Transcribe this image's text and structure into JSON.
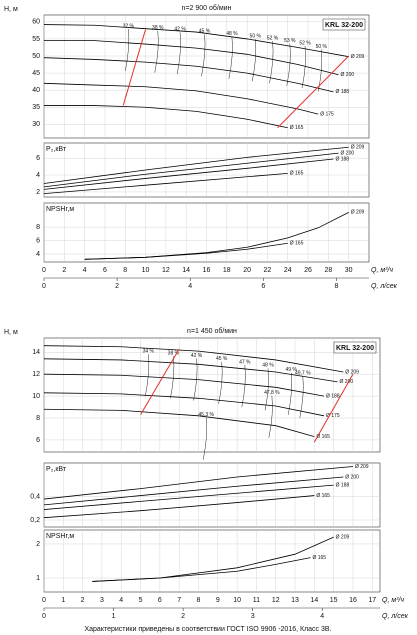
{
  "chart_data": [
    {
      "type": "line",
      "title": "n=2 900 об/мин",
      "model": "KRL 32-200",
      "ylabel": "H, м",
      "xlim": [
        0,
        32
      ],
      "ylim": [
        26,
        62
      ],
      "xticks": [
        0,
        2,
        4,
        6,
        8,
        10,
        12,
        14,
        16,
        18,
        20,
        22,
        24,
        26,
        28,
        30
      ],
      "yticks": [
        30,
        35,
        40,
        45,
        50,
        55,
        60
      ],
      "series": [
        {
          "name": "Ø 209",
          "color": "#000000",
          "x": [
            0,
            5,
            10,
            15,
            20,
            25,
            30
          ],
          "values": [
            59.2,
            59,
            58,
            57,
            55,
            52.5,
            49.8
          ]
        },
        {
          "name": "Ø 200",
          "color": "#000000",
          "x": [
            0,
            5,
            10,
            15,
            20,
            25,
            29
          ],
          "values": [
            54.5,
            54.5,
            53.5,
            52.3,
            50.5,
            47.5,
            44.5
          ]
        },
        {
          "name": "Ø 188",
          "color": "#000000",
          "x": [
            0,
            5,
            10,
            15,
            20,
            25,
            28.5
          ],
          "values": [
            49.5,
            49,
            48.2,
            47,
            45,
            42,
            39.5
          ]
        },
        {
          "name": "Ø 175",
          "color": "#000000",
          "x": [
            0,
            5,
            10,
            15,
            20,
            25,
            27
          ],
          "values": [
            42,
            41.5,
            41,
            39.8,
            37.5,
            34.5,
            33
          ]
        },
        {
          "name": "Ø 165",
          "color": "#000000",
          "x": [
            0,
            5,
            10,
            15,
            20,
            24
          ],
          "values": [
            35.5,
            35.5,
            35,
            33.8,
            31.5,
            29
          ]
        }
      ],
      "limit_lines": [
        {
          "color": "#e0302a",
          "x": [
            7.8,
            10
          ],
          "values": [
            35.5,
            57.8
          ]
        },
        {
          "color": "#e0302a",
          "x": [
            23,
            30
          ],
          "values": [
            29,
            50
          ]
        }
      ],
      "efficiency_labels": [
        "32 %",
        "38 %",
        "42 %",
        "45 %",
        "48 %",
        "50 %",
        "52 %",
        "53 %",
        "52 %",
        "50 %"
      ]
    },
    {
      "type": "line",
      "ylabel": "P₂,кВт",
      "xlim": [
        0,
        32
      ],
      "ylim": [
        1.4,
        7.8
      ],
      "xticks": [
        0,
        2,
        4,
        6,
        8,
        10,
        12,
        14,
        16,
        18,
        20,
        22,
        24,
        26,
        28,
        30
      ],
      "yticks": [
        2,
        4,
        6
      ],
      "series": [
        {
          "name": "Ø 209",
          "color": "#000000",
          "x": [
            0,
            10,
            20,
            30
          ],
          "values": [
            3.0,
            4.6,
            6.1,
            7.3
          ]
        },
        {
          "name": "Ø 200",
          "color": "#000000",
          "x": [
            0,
            10,
            20,
            29
          ],
          "values": [
            2.6,
            4.1,
            5.4,
            6.6
          ]
        },
        {
          "name": "Ø 188",
          "color": "#000000",
          "x": [
            0,
            10,
            20,
            28.5
          ],
          "values": [
            2.3,
            3.6,
            4.8,
            5.9
          ]
        },
        {
          "name": "Ø 165",
          "color": "#000000",
          "x": [
            0,
            10,
            20,
            24
          ],
          "values": [
            1.8,
            2.8,
            3.8,
            4.2
          ]
        }
      ]
    },
    {
      "type": "line",
      "ylabel": "NPSHr,м",
      "xlabel": "Q, м³/ч",
      "x2label": "Q, л/сек",
      "xlim": [
        0,
        32
      ],
      "ylim": [
        2.8,
        11.6
      ],
      "xticks": [
        0,
        2,
        4,
        6,
        8,
        10,
        12,
        14,
        16,
        18,
        20,
        22,
        24,
        26,
        28,
        30
      ],
      "yticks": [
        4,
        6,
        8
      ],
      "x2lim": [
        0,
        8.89
      ],
      "x2ticks": [
        0,
        2,
        4,
        6,
        8
      ],
      "series": [
        {
          "name": "Ø 209",
          "color": "#000000",
          "x": [
            4,
            10,
            16,
            20,
            24,
            27,
            30
          ],
          "values": [
            3.2,
            3.5,
            4.2,
            5,
            6.4,
            7.9,
            10.2
          ]
        },
        {
          "name": "Ø 165",
          "color": "#000000",
          "x": [
            4,
            10,
            16,
            20,
            24
          ],
          "values": [
            3.2,
            3.5,
            4.1,
            4.7,
            5.6
          ]
        }
      ]
    },
    {
      "type": "line",
      "title": "n=1 450 об/мин",
      "model": "KRL 32-200",
      "ylabel": "H, м",
      "xlim": [
        0,
        17.4
      ],
      "ylim": [
        4.9,
        15.3
      ],
      "xticks": [
        0,
        1,
        2,
        3,
        4,
        5,
        6,
        7,
        8,
        9,
        10,
        11,
        12,
        13,
        14,
        15,
        16,
        17
      ],
      "yticks": [
        6,
        8,
        10,
        12,
        14
      ],
      "series": [
        {
          "name": "Ø 209",
          "color": "#000000",
          "x": [
            0,
            4,
            8,
            12,
            15.5
          ],
          "values": [
            14.6,
            14.5,
            14.1,
            13.3,
            12.2
          ]
        },
        {
          "name": "Ø 200",
          "color": "#000000",
          "x": [
            0,
            4,
            8,
            12,
            15.2
          ],
          "values": [
            13.4,
            13.3,
            12.9,
            12.2,
            11.3
          ]
        },
        {
          "name": "Ø 188",
          "color": "#000000",
          "x": [
            0,
            4,
            8,
            12,
            14.5
          ],
          "values": [
            12,
            11.9,
            11.5,
            10.8,
            10
          ]
        },
        {
          "name": "Ø 175",
          "color": "#000000",
          "x": [
            0,
            4,
            8,
            12,
            14.5
          ],
          "values": [
            10.3,
            10.2,
            9.8,
            9.1,
            8.2
          ]
        },
        {
          "name": "Ø 165",
          "color": "#000000",
          "x": [
            0,
            4,
            8,
            12,
            14
          ],
          "values": [
            8.8,
            8.7,
            8.2,
            7.3,
            6.3
          ]
        }
      ],
      "limit_lines": [
        {
          "color": "#e0302a",
          "x": [
            5,
            7
          ],
          "values": [
            8.3,
            14.3
          ]
        },
        {
          "color": "#e0302a",
          "x": [
            14,
            16
          ],
          "values": [
            5.8,
            12
          ]
        }
      ],
      "efficiency_labels": [
        "34 %",
        "38 %",
        "42 %",
        "45 %",
        "47 %",
        "48 %",
        "49 %",
        "49,7 %",
        "47,8 %",
        "45,3 %"
      ]
    },
    {
      "type": "line",
      "ylabel": "P₂,кВт",
      "xlim": [
        0,
        17.4
      ],
      "ylim": [
        0.14,
        0.69
      ],
      "xticks": [
        0,
        1,
        2,
        3,
        4,
        5,
        6,
        7,
        8,
        9,
        10,
        11,
        12,
        13,
        14,
        15,
        16,
        17
      ],
      "yticks": [
        {
          "value": 0.2,
          "label": "0,2"
        },
        {
          "value": 0.4,
          "label": "0,4"
        }
      ],
      "series": [
        {
          "name": "Ø 209",
          "color": "#000000",
          "x": [
            0,
            5,
            10,
            16
          ],
          "values": [
            0.38,
            0.47,
            0.57,
            0.66
          ]
        },
        {
          "name": "Ø 200",
          "color": "#000000",
          "x": [
            0,
            5,
            10,
            15.5
          ],
          "values": [
            0.33,
            0.41,
            0.49,
            0.57
          ]
        },
        {
          "name": "Ø 188",
          "color": "#000000",
          "x": [
            0,
            5,
            10,
            15
          ],
          "values": [
            0.29,
            0.36,
            0.43,
            0.5
          ]
        },
        {
          "name": "Ø 165",
          "color": "#000000",
          "x": [
            0,
            5,
            10,
            14
          ],
          "values": [
            0.22,
            0.28,
            0.35,
            0.41
          ]
        }
      ]
    },
    {
      "type": "line",
      "ylabel": "NPSHr,м",
      "xlabel": "Q, м³/ч",
      "x2label": "Q, л/сек",
      "xlim": [
        0,
        17.4
      ],
      "ylim": [
        0.59,
        2.41
      ],
      "xticks": [
        0,
        1,
        2,
        3,
        4,
        5,
        6,
        7,
        8,
        9,
        10,
        11,
        12,
        13,
        14,
        15,
        16,
        17
      ],
      "yticks": [
        1,
        2
      ],
      "x2lim": [
        0,
        4.83
      ],
      "x2ticks": [
        0,
        1,
        2,
        3,
        4
      ],
      "series": [
        {
          "name": "Ø 209",
          "color": "#000000",
          "x": [
            2.5,
            6,
            10,
            13,
            15
          ],
          "values": [
            0.9,
            1.0,
            1.3,
            1.7,
            2.2
          ]
        },
        {
          "name": "Ø 165",
          "color": "#000000",
          "x": [
            2.5,
            6,
            10,
            12,
            13.8
          ],
          "values": [
            0.9,
            1.0,
            1.2,
            1.4,
            1.6
          ]
        }
      ]
    }
  ],
  "footer": "Характеристики приведены в соответствии  ГОСТ ISO 9906 -2016, Класс 3В."
}
